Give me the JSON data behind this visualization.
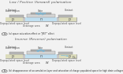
{
  "bg_color": "#f2f2f2",
  "title_top": "Low / Positive (forward) polarisation",
  "title_bottom": "Inverse (Reverse) polarisation",
  "label_a": "(a) space saturation effect or \"JFET\" effect",
  "label_b": "(b) disappearance of accumulation layer and saturation of charge populated space for high drain voltages",
  "body_color": "#c8c8c8",
  "body_edge": "#888888",
  "gate_ox_color": "#d4d4d4",
  "gate_metal_color": "#b0b0b0",
  "contact_color": "#b8b8b8",
  "channel_color": "#c0dff0",
  "depletion_color": "#dcdcbc",
  "arrow_color": "#7ab8d8",
  "text_color": "#333333",
  "p_color": "#555555",
  "n_color": "#555555"
}
